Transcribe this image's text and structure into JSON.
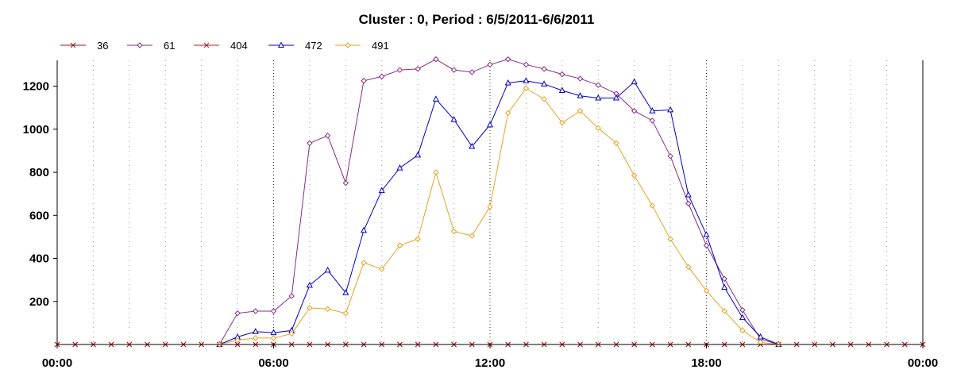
{
  "chart_data": {
    "type": "line",
    "title": "Cluster : 0, Period : 6/5/2011-6/6/2011",
    "xlabel": "",
    "ylabel": "",
    "x_ticks": [
      "00:00",
      "06:00",
      "12:00",
      "18:00",
      "00:00"
    ],
    "x_range_hours": [
      0,
      24
    ],
    "y_ticks": [
      200,
      400,
      600,
      800,
      1000,
      1200
    ],
    "ylim": [
      0,
      1320
    ],
    "grid": "vertical-dotted",
    "legend_position": "top-left",
    "x_hours": [
      0,
      0.5,
      1,
      1.5,
      2,
      2.5,
      3,
      3.5,
      4,
      4.5,
      5,
      5.5,
      6,
      6.5,
      7,
      7.5,
      8,
      8.5,
      9,
      9.5,
      10,
      10.5,
      11,
      11.5,
      12,
      12.5,
      13,
      13.5,
      14,
      14.5,
      15,
      15.5,
      16,
      16.5,
      17,
      17.5,
      18,
      18.5,
      19,
      19.5,
      20,
      20.5,
      21,
      21.5,
      22,
      22.5,
      23,
      23.5,
      24
    ],
    "series": [
      {
        "name": "36",
        "color": "#8b1a1a",
        "marker": "x",
        "values": [
          0,
          0,
          0,
          0,
          0,
          0,
          0,
          0,
          0,
          0,
          0,
          0,
          0,
          0,
          0,
          0,
          0,
          0,
          0,
          0,
          0,
          0,
          0,
          0,
          0,
          0,
          0,
          0,
          0,
          0,
          0,
          0,
          0,
          0,
          0,
          0,
          0,
          0,
          0,
          0,
          0,
          0,
          0,
          0,
          0,
          0,
          0,
          0,
          0
        ]
      },
      {
        "name": "61",
        "color": "#8a2a8a",
        "marker": "diamond",
        "values": [
          null,
          null,
          null,
          null,
          null,
          null,
          null,
          null,
          null,
          0,
          145,
          155,
          155,
          225,
          935,
          970,
          750,
          1225,
          1245,
          1275,
          1280,
          1325,
          1275,
          1265,
          1300,
          1325,
          1300,
          1280,
          1255,
          1235,
          1205,
          1165,
          1085,
          1040,
          875,
          655,
          460,
          305,
          160,
          25,
          0,
          null,
          null,
          null,
          null,
          null,
          null,
          null,
          null
        ]
      },
      {
        "name": "404",
        "color": "#b22222",
        "marker": "x",
        "values": [
          0,
          0,
          0,
          0,
          0,
          0,
          0,
          0,
          0,
          0,
          0,
          0,
          0,
          0,
          0,
          0,
          0,
          0,
          0,
          0,
          0,
          0,
          0,
          0,
          0,
          0,
          0,
          0,
          0,
          0,
          0,
          0,
          0,
          0,
          0,
          0,
          0,
          0,
          0,
          0,
          0,
          0,
          0,
          0,
          0,
          0,
          0,
          0,
          0
        ]
      },
      {
        "name": "472",
        "color": "#0000cc",
        "marker": "triangle",
        "values": [
          null,
          null,
          null,
          null,
          null,
          null,
          null,
          null,
          null,
          0,
          35,
          60,
          55,
          65,
          275,
          345,
          240,
          530,
          715,
          820,
          880,
          1140,
          1045,
          920,
          1020,
          1215,
          1225,
          1210,
          1180,
          1155,
          1145,
          1145,
          1220,
          1085,
          1090,
          695,
          510,
          265,
          125,
          35,
          0,
          null,
          null,
          null,
          null,
          null,
          null,
          null,
          null
        ]
      },
      {
        "name": "491",
        "color": "#e8a020",
        "marker": "diamond",
        "values": [
          null,
          null,
          null,
          null,
          null,
          null,
          null,
          null,
          null,
          0,
          20,
          30,
          30,
          50,
          170,
          165,
          145,
          380,
          350,
          460,
          490,
          800,
          525,
          505,
          640,
          1075,
          1190,
          1140,
          1030,
          1085,
          1005,
          935,
          785,
          645,
          490,
          360,
          250,
          155,
          65,
          10,
          0,
          null,
          null,
          null,
          null,
          null,
          null,
          null,
          null
        ]
      }
    ]
  }
}
